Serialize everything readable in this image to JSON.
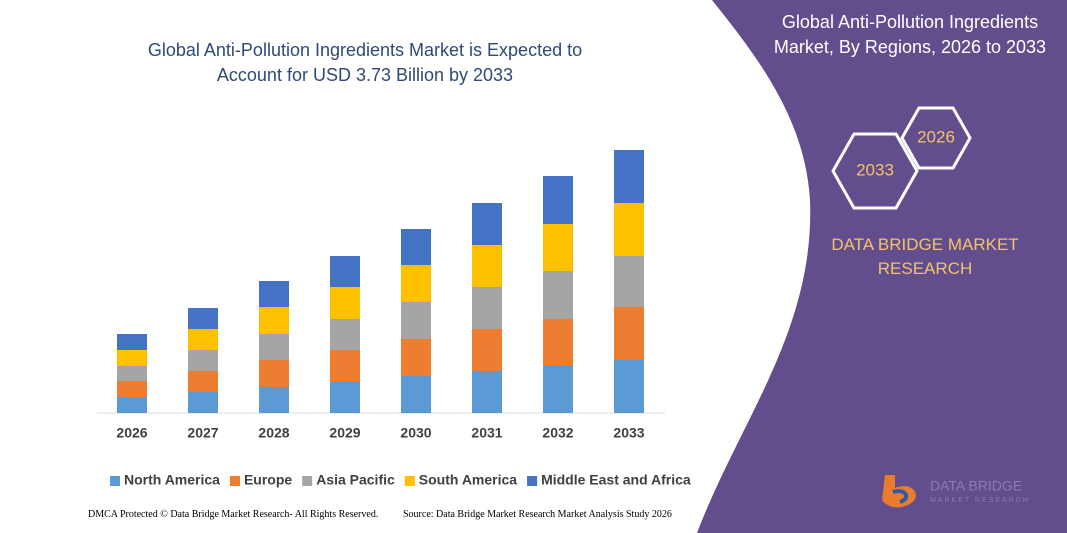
{
  "chart_data": {
    "type": "stacked_bar",
    "title": "Global Anti-Pollution Ingredients Market is Expected to Account for USD 3.73 Billion by 2033",
    "categories": [
      "2026",
      "2027",
      "2028",
      "2029",
      "2030",
      "2031",
      "2032",
      "2033"
    ],
    "series": [
      {
        "name": "North America",
        "color": "#5b9bd5",
        "values": [
          16,
          21,
          26,
          31,
          37,
          42,
          47,
          53
        ]
      },
      {
        "name": "Europe",
        "color": "#ed7d31",
        "values": [
          16,
          21,
          27,
          32,
          37,
          42,
          47,
          53
        ]
      },
      {
        "name": "Asia Pacific",
        "color": "#a5a5a5",
        "values": [
          15,
          21,
          26,
          31,
          37,
          42,
          48,
          51
        ]
      },
      {
        "name": "South America",
        "color": "#ffc000",
        "values": [
          16,
          21,
          27,
          32,
          37,
          42,
          47,
          53
        ]
      },
      {
        "name": "Middle East and Africa",
        "color": "#4472c4",
        "values": [
          16,
          21,
          26,
          31,
          36,
          42,
          48,
          53
        ]
      }
    ],
    "ylim": [
      0,
      270
    ],
    "legend": "bottom"
  },
  "panel": {
    "title": "Global Anti-Pollution Ingredients Market, By Regions, 2026 to 2033",
    "badges": [
      "2026",
      "2033"
    ],
    "brand": "DATA BRIDGE MARKET RESEARCH",
    "logo_name": "DATA BRIDGE",
    "logo_tagline": "MARKET RESEARCH"
  },
  "footer": {
    "left": "DMCA Protected © Data Bridge Market Research- All Rights Reserved.",
    "right": "Source: Data Bridge Market Research Market Analysis Study 2026"
  }
}
